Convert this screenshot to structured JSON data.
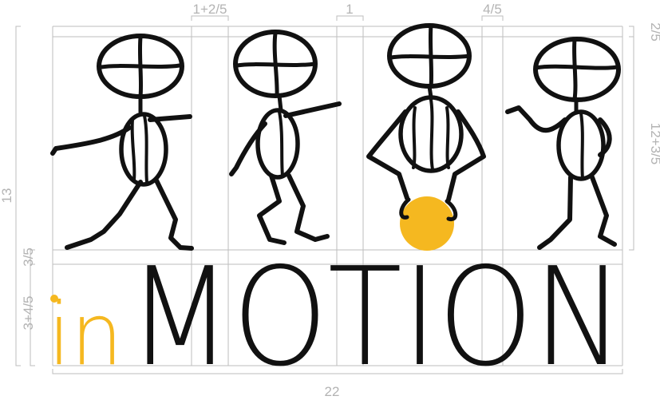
{
  "logo": {
    "prefix": "in",
    "word": "MOTION"
  },
  "dimensions": {
    "top": [
      "1+2/5",
      "1",
      "4/5"
    ],
    "right": [
      "2/5",
      "12+3/5"
    ],
    "left": [
      "13",
      "3/5",
      "3+4/5"
    ],
    "bottom": "22"
  },
  "colors": {
    "accent": "#f5b820",
    "ink": "#111111",
    "grid": "#bdbdbd",
    "dimension_text": "#b3b3b3"
  },
  "figures": [
    "stick-figure-pointing",
    "stick-figure-walking",
    "stick-figure-squatting-with-ball",
    "stick-figure-hand-on-hip"
  ]
}
